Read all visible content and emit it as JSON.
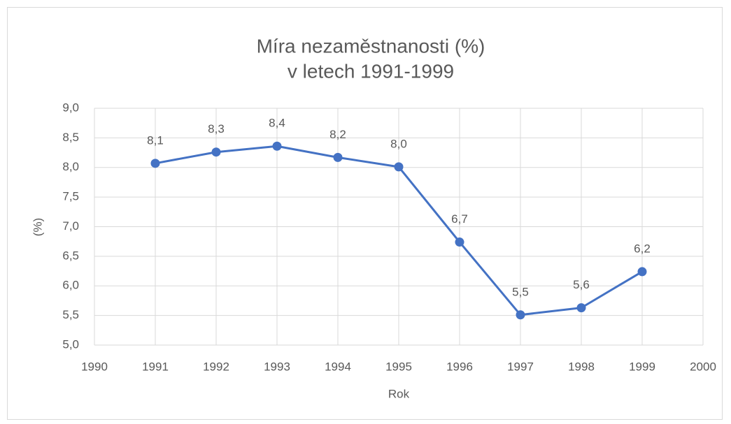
{
  "chart_data": {
    "type": "line",
    "title": [
      "Míra nezaměstnanosti (%)",
      "v letech 1991-1999"
    ],
    "xlabel": "Rok",
    "ylabel": "(%)",
    "x": [
      1991,
      1992,
      1993,
      1994,
      1995,
      1996,
      1997,
      1998,
      1999
    ],
    "series": [
      {
        "color": "#4472c4",
        "values": [
          8.07,
          8.26,
          8.36,
          8.17,
          8.01,
          6.74,
          5.51,
          5.63,
          6.24
        ],
        "value_labels": [
          "8,1",
          "8,3",
          "8,4",
          "8,2",
          "8,0",
          "6,7",
          "5,5",
          "5,6",
          "6,2"
        ]
      }
    ],
    "xlim": [
      1990,
      2000
    ],
    "xticks": [
      1990,
      1991,
      1992,
      1993,
      1994,
      1995,
      1996,
      1997,
      1998,
      1999,
      2000
    ],
    "ylim": [
      5,
      9
    ],
    "yticks": [
      {
        "value": 5,
        "label": "5,0"
      },
      {
        "value": 5.5,
        "label": "5,5"
      },
      {
        "value": 6,
        "label": "6,0"
      },
      {
        "value": 6.5,
        "label": "6,5"
      },
      {
        "value": 7,
        "label": "7,0"
      },
      {
        "value": 7.5,
        "label": "7,5"
      },
      {
        "value": 8,
        "label": "8,0"
      },
      {
        "value": 8.5,
        "label": "8,5"
      },
      {
        "value": 9,
        "label": "9,0"
      }
    ],
    "grid": true
  }
}
